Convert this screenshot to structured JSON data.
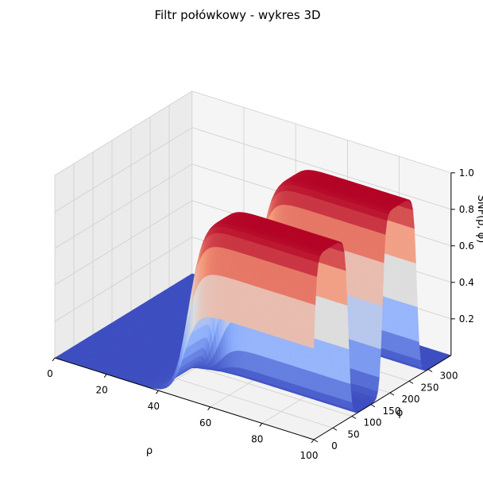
{
  "chart_data": {
    "type": "surface3d",
    "title": "Filtr połówkowy - wykres 3D",
    "xlabel": "ρ",
    "ylabel": "ϕ",
    "zlabel": "SNF(ρ, ϕ)",
    "xlim": [
      0,
      100
    ],
    "ylim": [
      0,
      360
    ],
    "zlim": [
      0,
      1
    ],
    "x_ticks": [
      0,
      20,
      40,
      60,
      80,
      100
    ],
    "y_ticks": [
      0,
      50,
      100,
      150,
      200,
      250,
      300
    ],
    "z_ticks": [
      0.2,
      0.4,
      0.6,
      0.8,
      1.0
    ],
    "x_tick_labels": [
      "0",
      "20",
      "40",
      "60",
      "80",
      "100"
    ],
    "y_tick_labels": [
      "0",
      "50",
      "100",
      "150",
      "200",
      "250",
      "300"
    ],
    "z_tick_labels": [
      "0.2",
      "0.4",
      "0.6",
      "0.8",
      "1.0"
    ],
    "colormap": "coolwarm",
    "grid": true,
    "surface": {
      "description_free_params": true,
      "phi_pass_bands": [
        [
          0,
          90
        ],
        [
          180,
          270
        ]
      ],
      "rho_transition_center": 50,
      "rho_transition_width": 2.5,
      "phi_transition_width": 4,
      "value_low": 0,
      "value_high": 1
    }
  }
}
